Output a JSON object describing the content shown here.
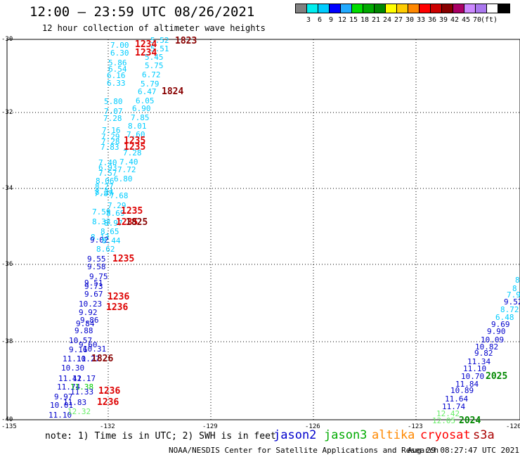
{
  "header": {
    "title": "12:00 — 23:59 UTC 08/26/2021",
    "subtitle": "12 hour collection of altimeter wave heights"
  },
  "legend": {
    "unit": "(ft)",
    "colors": [
      "#808080",
      "#00eeee",
      "#00ccff",
      "#0000ff",
      "#22aaff",
      "#00dd00",
      "#00aa00",
      "#008800",
      "#ffff00",
      "#ffcc00",
      "#ff8800",
      "#ff0000",
      "#cc0000",
      "#880000",
      "#aa0066",
      "#cc88ff",
      "#aa77ee",
      "#ffffff",
      "#000000"
    ],
    "labels": [
      "3",
      "6",
      "9",
      "12",
      "15",
      "18",
      "21",
      "24",
      "27",
      "30",
      "33",
      "36",
      "39",
      "42",
      "45",
      "70"
    ]
  },
  "axes": {
    "lat_labels": [
      "-30",
      "-32",
      "-34",
      "-36",
      "-38",
      "-40"
    ],
    "lon_labels": [
      "-135",
      "-132",
      "-129",
      "-126",
      "-123",
      "-120"
    ]
  },
  "points": [
    {
      "t": "7.00",
      "c": "#00ccff"
    },
    {
      "t": "5.52",
      "c": "#00ccff"
    },
    {
      "t": "6.30",
      "c": "#00ccff"
    },
    {
      "t": "5.51",
      "c": "#00ccff"
    },
    {
      "t": "5.45",
      "c": "#00ccff"
    },
    {
      "t": "5.86",
      "c": "#00ccff"
    },
    {
      "t": "6.54",
      "c": "#00ccff"
    },
    {
      "t": "5.75",
      "c": "#00ccff"
    },
    {
      "t": "6.16",
      "c": "#00ccff"
    },
    {
      "t": "6.72",
      "c": "#00ccff"
    },
    {
      "t": "6.33",
      "c": "#00ccff"
    },
    {
      "t": "5.79",
      "c": "#00ccff"
    },
    {
      "t": "6.47",
      "c": "#00ccff"
    },
    {
      "t": "6.05",
      "c": "#00ccff"
    },
    {
      "t": "5.80",
      "c": "#00ccff"
    },
    {
      "t": "6.90",
      "c": "#00ccff"
    },
    {
      "t": "7.07",
      "c": "#00ccff"
    },
    {
      "t": "7.28",
      "c": "#00ccff"
    },
    {
      "t": "7.85",
      "c": "#00ccff"
    },
    {
      "t": "8.01",
      "c": "#00ccff"
    },
    {
      "t": "7.16",
      "c": "#00ccff"
    },
    {
      "t": "7.60",
      "c": "#00ccff"
    },
    {
      "t": "7.29",
      "c": "#00ccff"
    },
    {
      "t": "7.28",
      "c": "#00ccff"
    },
    {
      "t": "7.83",
      "c": "#00ccff"
    },
    {
      "t": "7.28",
      "c": "#00ccff"
    },
    {
      "t": "7.40",
      "c": "#00ccff"
    },
    {
      "t": "7.40",
      "c": "#00ccff"
    },
    {
      "t": "6.93",
      "c": "#00ccff"
    },
    {
      "t": "7.72",
      "c": "#00ccff"
    },
    {
      "t": "7.57",
      "c": "#00ccff"
    },
    {
      "t": "6.80",
      "c": "#00ccff"
    },
    {
      "t": "8.06",
      "c": "#00ccff"
    },
    {
      "t": "8.27",
      "c": "#00ccff"
    },
    {
      "t": "8.34",
      "c": "#00ccff"
    },
    {
      "t": "7.87",
      "c": "#00ccff"
    },
    {
      "t": "7.68",
      "c": "#00ccff"
    },
    {
      "t": "7.29",
      "c": "#00ccff"
    },
    {
      "t": "7.59",
      "c": "#00ccff"
    },
    {
      "t": "8.69",
      "c": "#00ccff"
    },
    {
      "t": "8.33",
      "c": "#00ccff"
    },
    {
      "t": "8.97",
      "c": "#00ccff"
    },
    {
      "t": "8.65",
      "c": "#00ccff"
    },
    {
      "t": "8.13",
      "c": "#00ccff"
    },
    {
      "t": "9.02",
      "c": "#0000cc"
    },
    {
      "t": "8.44",
      "c": "#00ccff"
    },
    {
      "t": "8.62",
      "c": "#00ccff"
    },
    {
      "t": "9.55",
      "c": "#0000cc"
    },
    {
      "t": "9.58",
      "c": "#0000cc"
    },
    {
      "t": "9.75",
      "c": "#0000cc"
    },
    {
      "t": "9.51",
      "c": "#0000cc"
    },
    {
      "t": "9.73",
      "c": "#0000cc"
    },
    {
      "t": "9.67",
      "c": "#0000cc"
    },
    {
      "t": "10.23",
      "c": "#0000cc"
    },
    {
      "t": "9.92",
      "c": "#0000cc"
    },
    {
      "t": "9.86",
      "c": "#0000cc"
    },
    {
      "t": "9.84",
      "c": "#0000cc"
    },
    {
      "t": "9.88",
      "c": "#0000cc"
    },
    {
      "t": "10.57",
      "c": "#0000cc"
    },
    {
      "t": "9.60",
      "c": "#0000cc"
    },
    {
      "t": "9.16",
      "c": "#0000cc"
    },
    {
      "t": "10.31",
      "c": "#0000cc"
    },
    {
      "t": "11.10",
      "c": "#0000cc"
    },
    {
      "t": "11.27",
      "c": "#0000cc"
    },
    {
      "t": "10.30",
      "c": "#0000cc"
    },
    {
      "t": "11.42",
      "c": "#0000cc"
    },
    {
      "t": "11.17",
      "c": "#0000cc"
    },
    {
      "t": "11.74",
      "c": "#0000cc"
    },
    {
      "t": "11.38",
      "c": "#00cc00"
    },
    {
      "t": "11.33",
      "c": "#0000cc"
    },
    {
      "t": "9.97",
      "c": "#0000cc"
    },
    {
      "t": "11.83",
      "c": "#0000cc"
    },
    {
      "t": "10.01",
      "c": "#0000cc"
    },
    {
      "t": "11.10",
      "c": "#0000cc"
    },
    {
      "t": "12.32",
      "c": "#66ee66"
    },
    {
      "t": "8",
      "c": "#00ccff"
    },
    {
      "t": "8",
      "c": "#00ccff"
    },
    {
      "t": "7.9",
      "c": "#00ccff"
    },
    {
      "t": "9.52",
      "c": "#0000cc"
    },
    {
      "t": "8.72",
      "c": "#00ccff"
    },
    {
      "t": "6.48",
      "c": "#00ccff"
    },
    {
      "t": "9.69",
      "c": "#0000cc"
    },
    {
      "t": "9.90",
      "c": "#0000cc"
    },
    {
      "t": "10.09",
      "c": "#0000cc"
    },
    {
      "t": "10.82",
      "c": "#0000cc"
    },
    {
      "t": "9.82",
      "c": "#0000cc"
    },
    {
      "t": "11.34",
      "c": "#0000cc"
    },
    {
      "t": "11.10",
      "c": "#0000cc"
    },
    {
      "t": "10.70",
      "c": "#0000cc"
    },
    {
      "t": "11.84",
      "c": "#0000cc"
    },
    {
      "t": "10.89",
      "c": "#0000cc"
    },
    {
      "t": "11.64",
      "c": "#0000cc"
    },
    {
      "t": "11.74",
      "c": "#0000cc"
    },
    {
      "t": "12.42",
      "c": "#66ee66"
    },
    {
      "t": "12.05",
      "c": "#66ee66"
    }
  ],
  "times": [
    {
      "t": "1823",
      "c": "#880000"
    },
    {
      "t": "1234",
      "c": "#dd0000"
    },
    {
      "t": "1234",
      "c": "#dd0000"
    },
    {
      "t": "1824",
      "c": "#880000"
    },
    {
      "t": "1235",
      "c": "#dd0000"
    },
    {
      "t": "1235",
      "c": "#dd0000"
    },
    {
      "t": "1235",
      "c": "#dd0000"
    },
    {
      "t": "1235",
      "c": "#dd0000"
    },
    {
      "t": "1825",
      "c": "#880000"
    },
    {
      "t": "1235",
      "c": "#dd0000"
    },
    {
      "t": "1236",
      "c": "#dd0000"
    },
    {
      "t": "1236",
      "c": "#dd0000"
    },
    {
      "t": "1826",
      "c": "#880000"
    },
    {
      "t": "1236",
      "c": "#dd0000"
    },
    {
      "t": "1236",
      "c": "#dd0000"
    },
    {
      "t": "2025",
      "c": "#008800"
    },
    {
      "t": "2024",
      "c": "#008800"
    }
  ],
  "footer": {
    "note": "note: 1) Time is in UTC; 2) SWH is in feet",
    "satellites": [
      {
        "name": "jason2",
        "color": "#0000cc"
      },
      {
        "name": "jason3",
        "color": "#00aa00"
      },
      {
        "name": "altika",
        "color": "#ff8800"
      },
      {
        "name": "cryosat",
        "color": "#ff0000"
      },
      {
        "name": "s3a",
        "color": "#aa0000"
      }
    ],
    "credit": "NOAA/NESDIS Center for Satellite Applications and Research",
    "timestamp": "Aug 29 08:27:47 UTC 2021"
  }
}
